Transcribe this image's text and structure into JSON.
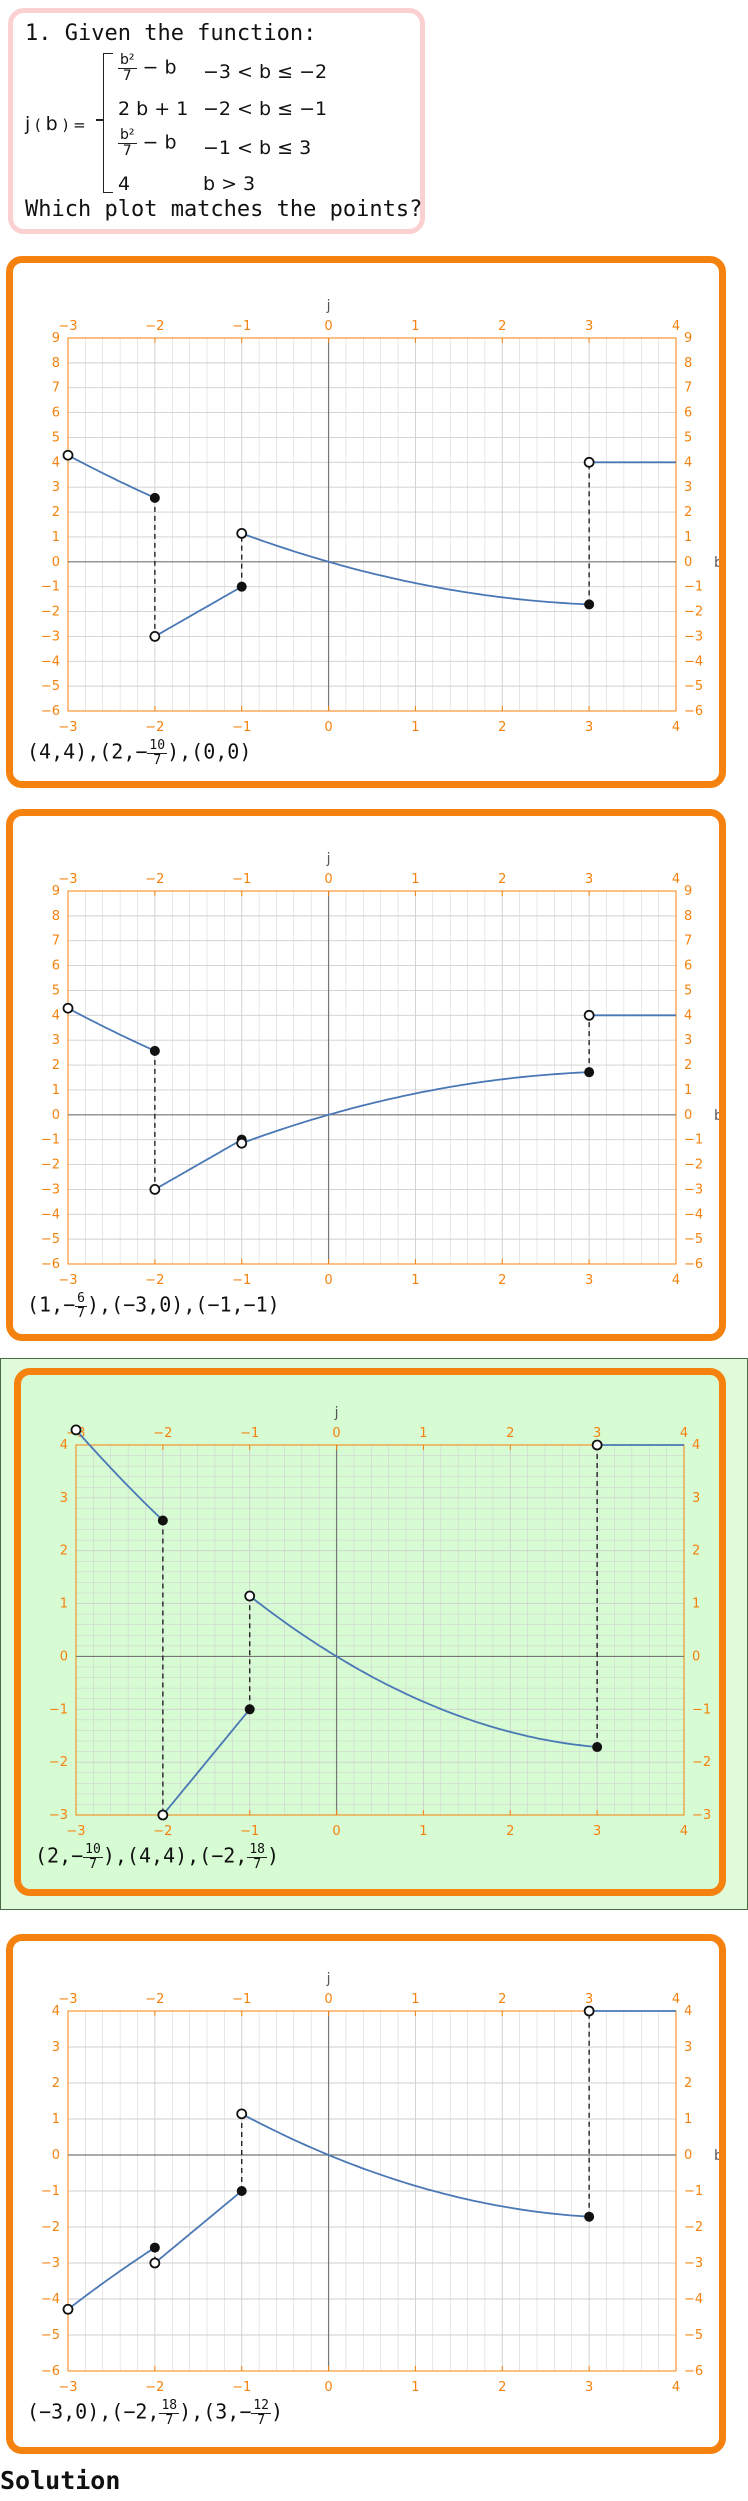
{
  "question": {
    "line1": "1. Given the function:",
    "function_name": "j",
    "function_var": "b",
    "pieces": [
      {
        "expr_num": "b²",
        "expr_den": "7",
        "expr_tail": " − b",
        "cond": "−3 < b ≤ −2"
      },
      {
        "expr": "2 b + 1",
        "cond": "−2 < b ≤ −1"
      },
      {
        "expr_num": "b²",
        "expr_den": "7",
        "expr_tail": " − b",
        "cond": "−1 < b ≤ 3"
      },
      {
        "expr": "4",
        "cond": "b > 3"
      }
    ],
    "line_last": "Which plot matches the points?"
  },
  "plot_style": {
    "accent": "#f5820e",
    "curve": "#4a78b5",
    "grid": "#cfcfcf",
    "selected_bg": "#d7fbd3",
    "selected_outer": "#e0fbda",
    "x_axis_label": "b",
    "y_axis_label": "j"
  },
  "options": [
    {
      "selected": false,
      "points_parts": [
        {
          "t": "(4,4),(2,−"
        },
        {
          "n": "10",
          "d": "7"
        },
        {
          "t": "),(0,0)"
        }
      ],
      "chart_data": {
        "type": "line",
        "xlim": [
          -3,
          4
        ],
        "ylim": [
          -6,
          9
        ],
        "xticks": [
          -3,
          -2,
          -1,
          0,
          1,
          2,
          3,
          4
        ],
        "yticks": [
          -6,
          -5,
          -4,
          -3,
          -2,
          -1,
          0,
          1,
          2,
          3,
          4,
          5,
          6,
          7,
          8,
          9
        ],
        "xlabel": "b",
        "ylabel": "j",
        "series": [
          {
            "fn": "b*b/7-b",
            "from": -3,
            "to": -2,
            "open_start": true,
            "closed_end": true
          },
          {
            "fn": "2*b+1",
            "from": -2,
            "to": -1,
            "open_start": true,
            "closed_end": true
          },
          {
            "fn": "b*b/7-b",
            "from": -1,
            "to": 3,
            "open_start": true,
            "closed_end": true
          },
          {
            "fn": "4",
            "from": 3,
            "to": 4,
            "open_start": true,
            "closed_end": false
          }
        ]
      }
    },
    {
      "selected": false,
      "points_parts": [
        {
          "t": "(1,−"
        },
        {
          "n": "6",
          "d": "7"
        },
        {
          "t": "),(−3,0),(−1,−1)"
        }
      ],
      "chart_data": {
        "type": "line",
        "xlim": [
          -3,
          4
        ],
        "ylim": [
          -6,
          9
        ],
        "xticks": [
          -3,
          -2,
          -1,
          0,
          1,
          2,
          3,
          4
        ],
        "yticks": [
          -6,
          -5,
          -4,
          -3,
          -2,
          -1,
          0,
          1,
          2,
          3,
          4,
          5,
          6,
          7,
          8,
          9
        ],
        "xlabel": "b",
        "ylabel": "j",
        "series": [
          {
            "fn": "b*b/7-b",
            "from": -3,
            "to": -2,
            "open_start": true,
            "closed_end": true
          },
          {
            "fn": "2*b+1",
            "from": -2,
            "to": -1,
            "open_start": true,
            "closed_end": true
          },
          {
            "fn": "b-b*b/7",
            "from": -1,
            "to": 3,
            "open_start": true,
            "closed_end": true
          },
          {
            "fn": "4",
            "from": 3,
            "to": 4,
            "open_start": true,
            "closed_end": false
          }
        ]
      }
    },
    {
      "selected": true,
      "points_parts": [
        {
          "t": "(2,−"
        },
        {
          "n": "10",
          "d": "7"
        },
        {
          "t": "),(4,4),(−2,"
        },
        {
          "n": "18",
          "d": "7"
        },
        {
          "t": ")"
        }
      ],
      "chart_data": {
        "type": "line",
        "xlim": [
          -3,
          4
        ],
        "ylim": [
          -3,
          4
        ],
        "xticks": [
          -3,
          -2,
          -1,
          0,
          1,
          2,
          3,
          4
        ],
        "yticks": [
          -3,
          -2,
          -1,
          0,
          1,
          2,
          3,
          4
        ],
        "xlabel": "b",
        "ylabel": "j",
        "series": [
          {
            "fn": "b*b/7-b",
            "from": -3,
            "to": -2,
            "open_start": true,
            "closed_end": true
          },
          {
            "fn": "2*b+1",
            "from": -2,
            "to": -1,
            "open_start": true,
            "closed_end": true
          },
          {
            "fn": "b*b/7-b",
            "from": -1,
            "to": 3,
            "open_start": true,
            "closed_end": true
          },
          {
            "fn": "4",
            "from": 3,
            "to": 4,
            "open_start": true,
            "closed_end": false
          }
        ]
      }
    },
    {
      "selected": false,
      "points_parts": [
        {
          "t": "(−3,0),(−2,"
        },
        {
          "n": "18",
          "d": "7"
        },
        {
          "t": "),(3,−"
        },
        {
          "n": "12",
          "d": "7"
        },
        {
          "t": ")"
        }
      ],
      "chart_data": {
        "type": "line",
        "xlim": [
          -3,
          4
        ],
        "ylim": [
          -6,
          4
        ],
        "xticks": [
          -3,
          -2,
          -1,
          0,
          1,
          2,
          3,
          4
        ],
        "yticks": [
          -6,
          -5,
          -4,
          -3,
          -2,
          -1,
          0,
          1,
          2,
          3,
          4
        ],
        "xlabel": "b",
        "ylabel": "j",
        "series": [
          {
            "fn": "b-b*b/7",
            "from": -3,
            "to": -2,
            "open_start": true,
            "closed_end": true
          },
          {
            "fn": "2*b+1",
            "from": -2,
            "to": -1,
            "open_start": true,
            "closed_end": true
          },
          {
            "fn": "b*b/7-b",
            "from": -1,
            "to": 3,
            "open_start": true,
            "closed_end": true
          },
          {
            "fn": "4",
            "from": 3,
            "to": 4,
            "open_start": true,
            "closed_end": false
          }
        ]
      }
    }
  ],
  "solution_heading": "Solution"
}
